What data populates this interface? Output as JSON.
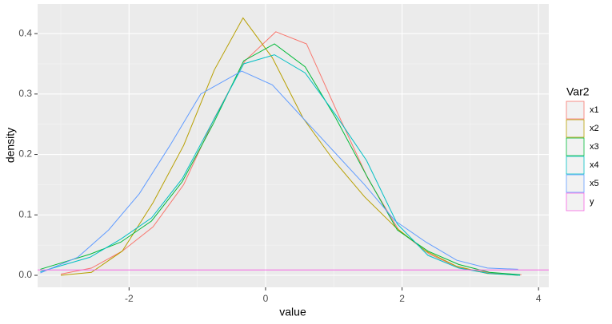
{
  "chart_data": {
    "type": "line",
    "x_label": "value",
    "y_label": "density",
    "legend_title": "Var2",
    "legend_position": "right",
    "grid": true,
    "xlim": [
      -3.34,
      4.15
    ],
    "ylim": [
      -0.0198,
      0.449
    ],
    "xticks": [
      -2,
      0,
      2,
      4
    ],
    "yticks": [
      {
        "value": 0,
        "label": "0.0"
      },
      0.1,
      0.2,
      0.3,
      0.4
    ],
    "series": [
      {
        "name": "x1",
        "color": "#F8766D",
        "x": [
          -3.0,
          -2.55,
          -2.1,
          -1.65,
          -1.2,
          -0.75,
          -0.3,
          0.15,
          0.6,
          1.05,
          1.5,
          1.95,
          2.4,
          2.85,
          3.3,
          3.75
        ],
        "values": [
          0.002,
          0.012,
          0.04,
          0.08,
          0.15,
          0.26,
          0.355,
          0.403,
          0.383,
          0.27,
          0.16,
          0.075,
          0.035,
          0.012,
          0.004,
          0.001
        ]
      },
      {
        "name": "x2",
        "color": "#B79F00",
        "x": [
          -3.0,
          -2.55,
          -2.1,
          -1.65,
          -1.2,
          -0.75,
          -0.33,
          0.1,
          0.55,
          1.0,
          1.45,
          1.9,
          2.35,
          2.8,
          3.25,
          3.7
        ],
        "values": [
          0.0,
          0.005,
          0.04,
          0.12,
          0.215,
          0.34,
          0.426,
          0.36,
          0.26,
          0.19,
          0.13,
          0.08,
          0.04,
          0.015,
          0.003,
          0.0
        ]
      },
      {
        "name": "x3",
        "color": "#00BA38",
        "x": [
          -3.3,
          -2.57,
          -2.12,
          -1.67,
          -1.22,
          -0.77,
          -0.32,
          0.13,
          0.58,
          1.03,
          1.48,
          1.93,
          2.38,
          2.83,
          3.28,
          3.73
        ],
        "values": [
          0.01,
          0.035,
          0.055,
          0.09,
          0.155,
          0.25,
          0.355,
          0.383,
          0.345,
          0.26,
          0.165,
          0.075,
          0.04,
          0.018,
          0.005,
          0.001
        ]
      },
      {
        "name": "x4",
        "color": "#00BFC4",
        "x": [
          -3.3,
          -2.57,
          -2.12,
          -1.67,
          -1.22,
          -0.77,
          -0.32,
          0.13,
          0.58,
          1.03,
          1.48,
          1.93,
          2.38,
          2.83,
          3.28,
          3.73
        ],
        "values": [
          0.006,
          0.03,
          0.06,
          0.095,
          0.16,
          0.255,
          0.35,
          0.365,
          0.335,
          0.265,
          0.19,
          0.085,
          0.033,
          0.012,
          0.003,
          0.0
        ]
      },
      {
        "name": "x5",
        "color": "#619CFF",
        "x": [
          -3.3,
          -2.75,
          -2.3,
          -1.85,
          -1.4,
          -0.95,
          -0.35,
          0.1,
          0.55,
          1.0,
          1.45,
          1.9,
          2.35,
          2.8,
          3.25,
          3.7
        ],
        "values": [
          0.004,
          0.03,
          0.075,
          0.135,
          0.215,
          0.3,
          0.338,
          0.315,
          0.26,
          0.205,
          0.15,
          0.09,
          0.055,
          0.025,
          0.012,
          0.01
        ]
      },
      {
        "name": "y",
        "color": "#F564E3",
        "x": [
          -3.34,
          4.15
        ],
        "values": [
          0.009,
          0.009
        ]
      }
    ]
  }
}
